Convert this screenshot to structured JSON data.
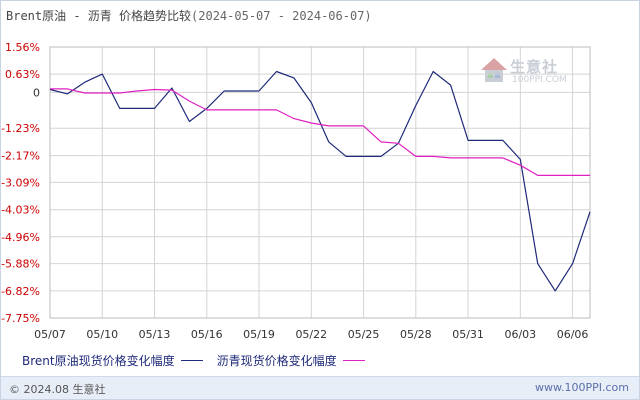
{
  "header": {
    "title": "Brent原油 - 沥青 价格趋势比较",
    "date_range": "(2024-05-07 - 2024-06-07)"
  },
  "watermark": {
    "name": "生意社",
    "url": "100PPI.COM"
  },
  "legend": {
    "items": [
      {
        "label": "Brent原油现货价格变化幅度",
        "color": "#1f2a7a"
      },
      {
        "label": "沥青现货价格变化幅度",
        "color": "#e020c0"
      }
    ]
  },
  "footer": {
    "copyright": "© 2024.08 生意社",
    "site": "www.100PPI.com"
  },
  "colors": {
    "brent": "#1f2a7a",
    "asphalt": "#e020c0",
    "grid": "#d4d4d4",
    "tick_red": "#cc0000"
  },
  "chart_data": {
    "type": "line",
    "title": "Brent原油 - 沥青 价格趋势比较",
    "xlabel": "",
    "ylabel": "",
    "ylim": [
      -7.75,
      1.56
    ],
    "grid": true,
    "legend_position": "bottom",
    "x_tick_labels": [
      "05/07",
      "05/10",
      "05/13",
      "05/16",
      "05/19",
      "05/22",
      "05/25",
      "05/28",
      "05/31",
      "06/03",
      "06/06"
    ],
    "y_tick_labels": [
      "1.56%",
      "0.63%",
      "0",
      "-1.23%",
      "-2.17%",
      "-3.09%",
      "-4.03%",
      "-4.96%",
      "-5.88%",
      "-6.82%",
      "-7.75%"
    ],
    "y_tick_values": [
      1.56,
      0.63,
      0,
      -1.23,
      -2.17,
      -3.09,
      -4.03,
      -4.96,
      -5.88,
      -6.82,
      -7.75
    ],
    "x": [
      "05/07",
      "05/08",
      "05/09",
      "05/10",
      "05/11",
      "05/12",
      "05/13",
      "05/14",
      "05/15",
      "05/16",
      "05/17",
      "05/18",
      "05/19",
      "05/20",
      "05/21",
      "05/22",
      "05/23",
      "05/24",
      "05/25",
      "05/26",
      "05/27",
      "05/28",
      "05/29",
      "05/30",
      "05/31",
      "06/01",
      "06/02",
      "06/03",
      "06/04",
      "06/05",
      "06/06",
      "06/07"
    ],
    "series": [
      {
        "name": "Brent原油现货价格变化幅度",
        "values": [
          0.1,
          -0.05,
          0.35,
          0.63,
          -0.55,
          -0.55,
          -0.55,
          0.15,
          -1.0,
          -0.55,
          0.05,
          0.05,
          0.05,
          0.72,
          0.5,
          -0.35,
          -1.7,
          -2.2,
          -2.2,
          -2.2,
          -1.75,
          -0.45,
          0.72,
          0.25,
          -1.65,
          -1.65,
          -1.65,
          -2.3,
          -5.88,
          -6.82,
          -5.88,
          -4.1
        ]
      },
      {
        "name": "沥青现货价格变化幅度",
        "values": [
          0.12,
          0.12,
          -0.02,
          -0.02,
          -0.02,
          0.05,
          0.1,
          0.08,
          -0.3,
          -0.6,
          -0.6,
          -0.6,
          -0.6,
          -0.6,
          -0.9,
          -1.05,
          -1.15,
          -1.15,
          -1.15,
          -1.7,
          -1.75,
          -2.2,
          -2.2,
          -2.25,
          -2.25,
          -2.25,
          -2.25,
          -2.5,
          -2.85,
          -2.85,
          -2.85,
          -2.85
        ]
      }
    ]
  }
}
